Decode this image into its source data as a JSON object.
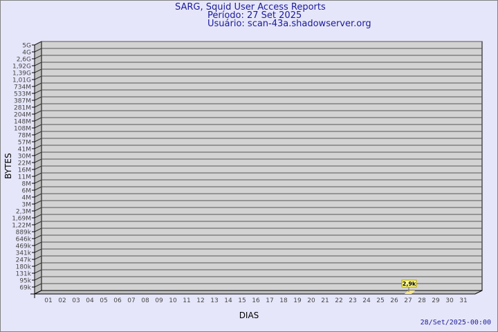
{
  "header": {
    "title": "SARG, Squid User Access Reports",
    "period": "Período: 27 Set 2025",
    "user": "Usuário: scan-43a.shadowserver.org"
  },
  "footer": {
    "timestamp": "28/Set/2025-00:00"
  },
  "chart_data": {
    "type": "bar",
    "title": "SARG, Squid User Access Reports",
    "xlabel": "DIAS",
    "ylabel": "BYTES",
    "categories": [
      "01",
      "02",
      "03",
      "04",
      "05",
      "06",
      "07",
      "08",
      "09",
      "10",
      "11",
      "12",
      "13",
      "14",
      "15",
      "16",
      "17",
      "18",
      "19",
      "20",
      "21",
      "22",
      "23",
      "24",
      "25",
      "26",
      "27",
      "28",
      "29",
      "30",
      "31"
    ],
    "y_tick_labels": [
      "69k",
      "95k",
      "131k",
      "180k",
      "247k",
      "341k",
      "469k",
      "646k",
      "889k",
      "1,22M",
      "1,69M",
      "2,3M",
      "3M",
      "4M",
      "6M",
      "8M",
      "11M",
      "16M",
      "22M",
      "30M",
      "41M",
      "57M",
      "78M",
      "108M",
      "148M",
      "204M",
      "281M",
      "387M",
      "533M",
      "734M",
      "1,01G",
      "1,39G",
      "1,92G",
      "2,6G",
      "4G",
      "5G"
    ],
    "y_scale": "log",
    "grid": true,
    "series": [
      {
        "points": [
          {
            "category": "27",
            "value": 2900,
            "label": "2,9k"
          }
        ]
      }
    ],
    "colors": {
      "wall": "#D3D3D3",
      "side": "#C0C0C0",
      "bar": "#FFE88A",
      "label_bg": "#FFFF99",
      "text": "#1a1a9a"
    }
  }
}
